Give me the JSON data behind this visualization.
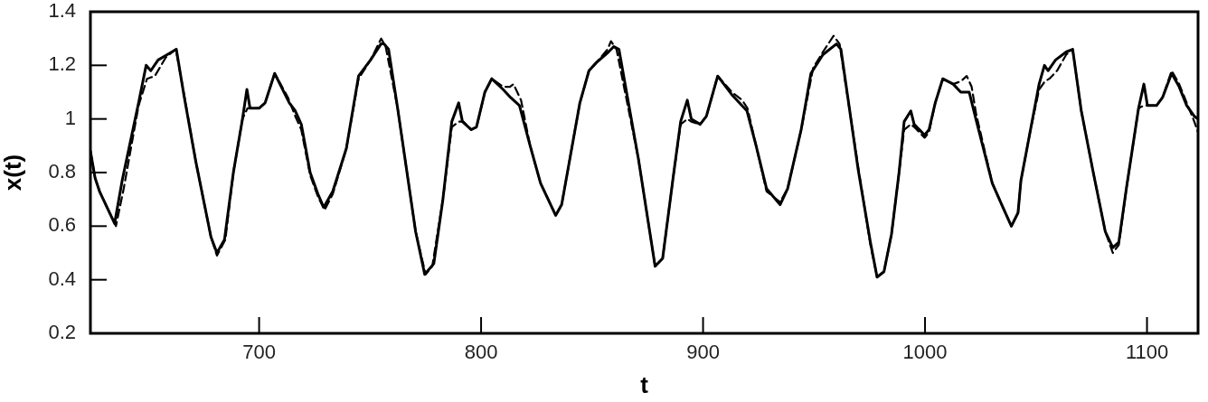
{
  "chart_data": {
    "type": "line",
    "xlabel": "t",
    "ylabel": "x(t)",
    "xlim": [
      624,
      1123
    ],
    "xticks": [
      700,
      800,
      900,
      1000,
      1100
    ],
    "ylim": [
      0.2,
      1.4
    ],
    "yticks": [
      0.2,
      0.4,
      0.6,
      0.8,
      1,
      1.2,
      1.4
    ],
    "series": [
      {
        "color": "#000000",
        "line_style": "solid",
        "x": [
          624,
          626.1,
          628.1,
          634.9,
          638.3,
          645.7,
          649.1,
          651.2,
          654.5,
          658.6,
          662.7,
          666.1,
          671.5,
          678.3,
          681,
          684.4,
          688.4,
          692.5,
          694.5,
          695.9,
          700,
          702.7,
          707,
          713.6,
          716.3,
          719,
          723,
          726.5,
          729.1,
          733.2,
          739.3,
          744.8,
          750.2,
          754.9,
          756.3,
          758.3,
          762.4,
          770.5,
          774.6,
          778.7,
          782.8,
          786.8,
          789.9,
          791.6,
          795.6,
          797.9,
          801.7,
          804.8,
          809.9,
          813.3,
          817.3,
          822.1,
          826.8,
          833.6,
          836.3,
          840.4,
          844.5,
          848.6,
          851.9,
          857.4,
          859.8,
          862.1,
          870.9,
          878.4,
          881.8,
          886.5,
          889.9,
          892.9,
          894.7,
          898.7,
          901.5,
          906.6,
          913,
          919.8,
          923.9,
          928.6,
          934.7,
          938.1,
          944.2,
          948.6,
          954,
          960.1,
          962.1,
          969.9,
          975.4,
          978.4,
          981.5,
          984.9,
          988.3,
          990.6,
          993.6,
          995.1,
          999.8,
          1001.8,
          1004.6,
          1008,
          1012.7,
          1016.1,
          1019.9,
          1022.9,
          1030.3,
          1035.1,
          1038.9,
          1041.9,
          1043.2,
          1047.3,
          1051.4,
          1053.8,
          1055.4,
          1058.8,
          1063.6,
          1066.5,
          1070.4,
          1075.8,
          1081.2,
          1084.6,
          1087.3,
          1090.7,
          1096.2,
          1098.6,
          1100.2,
          1104.3,
          1107,
          1111.1,
          1114.5,
          1117.9,
          1121.3,
          1123
        ],
        "values": [
          0.88,
          0.78,
          0.73,
          0.61,
          0.77,
          1.06,
          1.2,
          1.18,
          1.22,
          1.24,
          1.26,
          1.09,
          0.84,
          0.56,
          0.5,
          0.55,
          0.8,
          1.0,
          1.11,
          1.04,
          1.04,
          1.06,
          1.17,
          1.06,
          1.03,
          0.98,
          0.8,
          0.72,
          0.67,
          0.73,
          0.89,
          1.16,
          1.22,
          1.28,
          1.28,
          1.26,
          1.04,
          0.58,
          0.42,
          0.46,
          0.7,
          0.99,
          1.06,
          0.99,
          0.96,
          0.97,
          1.1,
          1.15,
          1.11,
          1.08,
          1.05,
          0.9,
          0.76,
          0.64,
          0.68,
          0.87,
          1.06,
          1.18,
          1.21,
          1.25,
          1.27,
          1.26,
          0.85,
          0.45,
          0.48,
          0.78,
          0.99,
          1.07,
          1.0,
          0.98,
          1.01,
          1.16,
          1.09,
          1.03,
          0.9,
          0.74,
          0.68,
          0.74,
          0.96,
          1.17,
          1.24,
          1.28,
          1.26,
          0.81,
          0.54,
          0.41,
          0.43,
          0.57,
          0.8,
          0.99,
          1.03,
          0.98,
          0.94,
          0.96,
          1.06,
          1.15,
          1.13,
          1.1,
          1.1,
          1.0,
          0.76,
          0.67,
          0.6,
          0.65,
          0.77,
          0.95,
          1.13,
          1.2,
          1.18,
          1.22,
          1.25,
          1.26,
          1.03,
          0.8,
          0.58,
          0.52,
          0.54,
          0.74,
          1.04,
          1.13,
          1.05,
          1.05,
          1.08,
          1.17,
          1.12,
          1.05,
          1.01,
          1.0
        ]
      },
      {
        "color": "#000000",
        "line_style": "dashed",
        "x": [
          624,
          626.1,
          628.1,
          635.5,
          639,
          645.7,
          649.5,
          653,
          658,
          662.5,
          666,
          671.5,
          678.3,
          681,
          684.8,
          688.4,
          692.5,
          694.8,
          697,
          700,
          702.7,
          707,
          713,
          716.3,
          719,
          723,
          726.5,
          729.5,
          733.2,
          739.3,
          744.8,
          750.2,
          755,
          757,
          762.4,
          770.5,
          775,
          778,
          782.8,
          786.8,
          790,
          792,
          795.6,
          798,
          801.7,
          804.8,
          809.9,
          813,
          814.6,
          818,
          822.1,
          826.8,
          833.6,
          836.3,
          840.4,
          844.5,
          848.6,
          851.9,
          857,
          858.5,
          861,
          870.9,
          878.4,
          881.8,
          886.5,
          889.9,
          893,
          894.7,
          898.7,
          901.5,
          906.6,
          913,
          917.6,
          920,
          923.9,
          928.6,
          934.7,
          938.1,
          944.2,
          949.6,
          954,
          958.8,
          961.5,
          969.9,
          975.4,
          978.4,
          981.5,
          984.9,
          988.3,
          990.6,
          993.6,
          995.1,
          999.8,
          1001.8,
          1004.6,
          1008,
          1012.7,
          1016,
          1018.8,
          1021,
          1023,
          1030.3,
          1035.1,
          1038.9,
          1041.9,
          1043.2,
          1047.3,
          1051.4,
          1054,
          1056,
          1059.5,
          1063.6,
          1066.5,
          1070.4,
          1075.8,
          1081.2,
          1084.6,
          1087.3,
          1090.7,
          1096.2,
          1098.6,
          1100.2,
          1104.3,
          1107,
          1111.1,
          1114.5,
          1117.9,
          1121.3,
          1123
        ],
        "values": [
          0.88,
          0.78,
          0.73,
          0.6,
          0.74,
          1.05,
          1.15,
          1.16,
          1.23,
          1.26,
          1.1,
          0.84,
          0.56,
          0.49,
          0.55,
          0.8,
          1.0,
          1.04,
          1.04,
          1.04,
          1.06,
          1.17,
          1.08,
          1.01,
          0.96,
          0.79,
          0.71,
          0.66,
          0.72,
          0.89,
          1.15,
          1.22,
          1.3,
          1.27,
          1.04,
          0.58,
          0.42,
          0.45,
          0.7,
          0.97,
          0.99,
          0.99,
          0.96,
          0.97,
          1.1,
          1.15,
          1.12,
          1.12,
          1.13,
          1.07,
          0.9,
          0.76,
          0.64,
          0.68,
          0.87,
          1.06,
          1.18,
          1.21,
          1.26,
          1.29,
          1.26,
          0.85,
          0.45,
          0.48,
          0.78,
          0.98,
          1.0,
          0.99,
          0.98,
          1.01,
          1.16,
          1.1,
          1.07,
          1.04,
          0.9,
          0.73,
          0.69,
          0.74,
          0.96,
          1.19,
          1.25,
          1.31,
          1.28,
          0.82,
          0.53,
          0.41,
          0.43,
          0.57,
          0.8,
          0.96,
          0.98,
          0.97,
          0.93,
          0.95,
          1.06,
          1.15,
          1.13,
          1.14,
          1.16,
          1.12,
          1.02,
          0.76,
          0.67,
          0.6,
          0.65,
          0.77,
          0.95,
          1.11,
          1.14,
          1.15,
          1.18,
          1.24,
          1.26,
          1.03,
          0.8,
          0.58,
          0.5,
          0.53,
          0.74,
          1.04,
          1.05,
          1.05,
          1.05,
          1.08,
          1.18,
          1.13,
          1.06,
          0.99,
          0.95
        ]
      }
    ]
  }
}
